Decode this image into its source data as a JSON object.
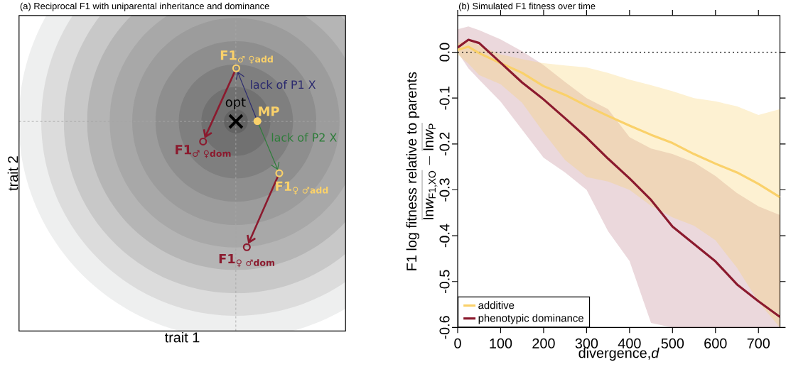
{
  "chart_data": [
    {
      "type": "other",
      "title": "(a) Reciprocal F1 with uniparental inheritance and dominance",
      "xlabel": "trait 1",
      "ylabel": "trait 2",
      "annotations": [
        "opt",
        "MP",
        "lack of P1 X",
        "lack of P2 X",
        "F1$_{♂ ♀add}$",
        "F1$_{♂ ♀dom}$",
        "F1$_{♀ ♂add}$",
        "F1$_{♀ ♂dom}$"
      ]
    },
    {
      "type": "line",
      "title": "(b) Simulated F1 fitness over time",
      "xlabel": "divergence,*d*",
      "ylabel": "F1 log fitness relative to parents",
      "annotations": [
        "\\overline{\\mathrm{ln}\\mathit{w}_{\\mathrm{F1,XO}}}\\ \\mathrm{-}\\ \\overline{\\mathrm{ln}\\mathit{w}_{\\mathrm{P}}}"
      ],
      "xlim": [
        0,
        750
      ],
      "ylim": [
        -0.6,
        0.08
      ],
      "xticks": [
        0,
        100,
        200,
        300,
        400,
        500,
        600,
        700
      ],
      "yticks": [
        -0.6,
        -0.5,
        -0.4,
        -0.3,
        -0.2,
        -0.1,
        {
          "value": 0,
          "label": "0.0"
        }
      ],
      "ref_lines": [
        {
          "axis": "y",
          "value": 0,
          "line_style": "dotted",
          "color": "#000000"
        }
      ],
      "legend": "bottom left",
      "x": [
        0,
        25,
        50,
        100,
        150,
        200,
        250,
        300,
        350,
        400,
        450,
        500,
        550,
        600,
        650,
        700,
        750
      ],
      "series": [
        {
          "name": "additive",
          "color": "#fad16a",
          "values": [
            0.005,
            0.012,
            -0.002,
            -0.024,
            -0.045,
            -0.074,
            -0.093,
            -0.117,
            -0.139,
            -0.16,
            -0.18,
            -0.198,
            -0.222,
            -0.243,
            -0.262,
            -0.287,
            -0.316
          ],
          "upper": [
            0.02,
            0.025,
            0.015,
            -0.005,
            -0.015,
            -0.024,
            -0.029,
            -0.033,
            -0.045,
            -0.06,
            -0.072,
            -0.085,
            -0.1,
            -0.107,
            -0.118,
            -0.137,
            -0.124
          ],
          "lower": [
            -0.005,
            -0.025,
            -0.05,
            -0.07,
            -0.11,
            -0.175,
            -0.235,
            -0.272,
            -0.282,
            -0.3,
            -0.335,
            -0.36,
            -0.378,
            -0.41,
            -0.47,
            -0.544,
            -0.6
          ]
        },
        {
          "name": "phenotypic dominance",
          "color": "#8b1a2e",
          "values": [
            0.01,
            0.027,
            0.02,
            -0.023,
            -0.066,
            -0.103,
            -0.144,
            -0.186,
            -0.232,
            -0.275,
            -0.322,
            -0.38,
            -0.418,
            -0.456,
            -0.506,
            -0.543,
            -0.577
          ],
          "upper": [
            0.05,
            0.056,
            0.048,
            0.028,
            0.002,
            -0.028,
            -0.065,
            -0.1,
            -0.124,
            -0.185,
            -0.21,
            -0.222,
            -0.24,
            -0.27,
            -0.307,
            -0.336,
            -0.355
          ],
          "lower": [
            0.0,
            -0.035,
            -0.06,
            -0.108,
            -0.169,
            -0.23,
            -0.262,
            -0.3,
            -0.39,
            -0.455,
            -0.59,
            -0.6,
            -0.6,
            -0.6,
            -0.6,
            -0.6,
            -0.6
          ]
        }
      ]
    }
  ]
}
